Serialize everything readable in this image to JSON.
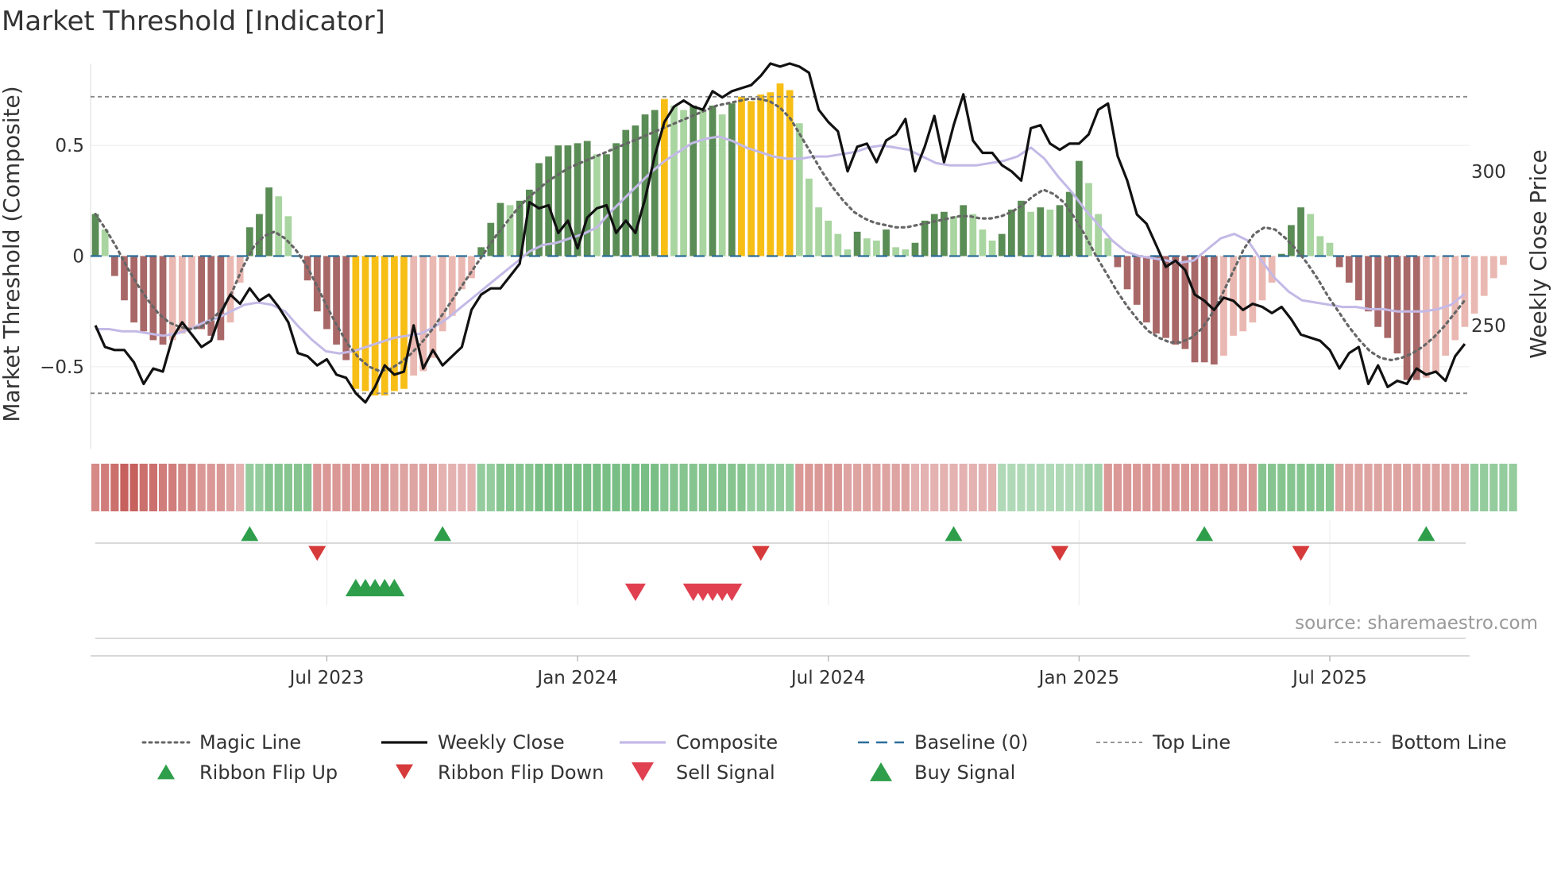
{
  "chart_data": {
    "type": "combo",
    "title": "Market Threshold [Indicator]",
    "ylabel_left": "Market Threshold (Composite)",
    "ylabel_right": "Weekly Close Price",
    "ylim_left": [
      -0.87,
      0.87
    ],
    "ylim_right": [
      210,
      335
    ],
    "yticks_left": [
      {
        "v": 0.5,
        "label": "0.5"
      },
      {
        "v": 0,
        "label": "0"
      },
      {
        "v": -0.5,
        "label": "−0.5"
      }
    ],
    "yticks_right": [
      {
        "v": 300,
        "label": "300"
      },
      {
        "v": 250,
        "label": "250"
      }
    ],
    "x_ticks": [
      {
        "week": 24,
        "label": "Jul 2023"
      },
      {
        "week": 50,
        "label": "Jan 2024"
      },
      {
        "week": 76,
        "label": "Jul 2024"
      },
      {
        "week": 102,
        "label": "Jan 2025"
      },
      {
        "week": 128,
        "label": "Jul 2025"
      }
    ],
    "n_weeks": 143,
    "top_line": 0.72,
    "bottom_line": -0.62,
    "baseline": 0,
    "composite_bars": [
      0.19,
      0.12,
      -0.09,
      -0.2,
      -0.3,
      -0.34,
      -0.38,
      -0.4,
      -0.38,
      -0.35,
      -0.33,
      -0.33,
      -0.36,
      -0.38,
      -0.3,
      -0.12,
      0.13,
      0.19,
      0.31,
      0.27,
      0.18,
      0,
      -0.11,
      -0.25,
      -0.33,
      -0.4,
      -0.47,
      -0.6,
      -0.61,
      -0.63,
      -0.63,
      -0.61,
      -0.6,
      -0.54,
      -0.52,
      -0.46,
      -0.34,
      -0.27,
      -0.15,
      -0.1,
      0.04,
      0.15,
      0.24,
      0.23,
      0.25,
      0.3,
      0.42,
      0.45,
      0.5,
      0.5,
      0.51,
      0.52,
      0.46,
      0.46,
      0.51,
      0.57,
      0.59,
      0.64,
      0.66,
      0.71,
      0.68,
      0.66,
      0.68,
      0.66,
      0.68,
      0.64,
      0.69,
      0.72,
      0.7,
      0.73,
      0.74,
      0.78,
      0.75,
      0.6,
      0.35,
      0.22,
      0.16,
      0.1,
      0.03,
      0.11,
      0.08,
      0.07,
      0.12,
      0.04,
      0.03,
      0.06,
      0.16,
      0.19,
      0.2,
      0.18,
      0.23,
      0.19,
      0.12,
      0.07,
      0.1,
      0.21,
      0.25,
      0.2,
      0.22,
      0.21,
      0.23,
      0.29,
      0.43,
      0.33,
      0.19,
      0.08,
      -0.05,
      -0.15,
      -0.22,
      -0.3,
      -0.35,
      -0.37,
      -0.4,
      -0.42,
      -0.48,
      -0.48,
      -0.49,
      -0.45,
      -0.36,
      -0.34,
      -0.3,
      -0.2,
      -0.12,
      0.01,
      0.14,
      0.22,
      0.19,
      0.09,
      0.06,
      -0.05,
      -0.12,
      -0.2,
      -0.25,
      -0.32,
      -0.37,
      -0.44,
      -0.56,
      -0.56,
      -0.55,
      -0.53,
      -0.45,
      -0.38,
      -0.32,
      -0.26,
      -0.18,
      -0.1,
      -0.04
    ],
    "weekly_close": [
      250,
      243,
      242,
      242,
      238,
      231,
      236,
      235,
      246,
      251,
      247,
      243,
      245,
      254,
      260,
      257,
      262,
      258,
      260,
      256,
      251,
      241,
      240,
      237,
      239,
      234,
      233,
      228,
      225,
      230,
      237,
      234,
      235,
      250,
      236,
      242,
      237,
      240,
      243,
      255,
      260,
      262,
      262,
      266,
      270,
      290,
      288,
      289,
      280,
      284,
      275,
      285,
      288,
      289,
      280,
      284,
      280,
      291,
      305,
      316,
      321,
      323,
      321,
      320,
      326,
      324,
      326,
      327,
      328,
      331,
      335,
      334,
      335,
      334,
      332,
      320,
      316,
      313,
      300,
      308,
      309,
      303,
      310,
      312,
      317,
      300,
      308,
      318,
      303,
      315,
      325,
      310,
      306,
      306,
      302,
      300,
      297,
      314,
      315,
      309,
      307,
      309,
      309,
      312,
      320,
      322,
      305,
      297,
      286,
      283,
      276,
      269,
      271,
      268,
      260,
      258,
      255,
      259,
      258,
      255,
      257,
      256,
      254,
      256,
      252,
      247,
      246,
      245,
      242,
      236,
      241,
      243,
      231,
      237,
      230,
      232,
      231,
      236,
      234,
      235,
      232,
      240,
      244
    ],
    "magic_line": [
      0.19,
      0.12,
      0.04,
      -0.05,
      -0.13,
      -0.2,
      -0.26,
      -0.3,
      -0.32,
      -0.33,
      -0.32,
      -0.29,
      -0.24,
      -0.16,
      -0.05,
      0.04,
      0.09,
      0.11,
      0.08,
      0.03,
      -0.04,
      -0.13,
      -0.23,
      -0.32,
      -0.4,
      -0.46,
      -0.5,
      -0.52,
      -0.51,
      -0.48,
      -0.44,
      -0.39,
      -0.33,
      -0.26,
      -0.19,
      -0.12,
      -0.05,
      0.02,
      0.09,
      0.15,
      0.21,
      0.26,
      0.3,
      0.34,
      0.37,
      0.4,
      0.42,
      0.44,
      0.46,
      0.48,
      0.5,
      0.52,
      0.54,
      0.56,
      0.58,
      0.6,
      0.62,
      0.64,
      0.66,
      0.68,
      0.69,
      0.7,
      0.71,
      0.71,
      0.7,
      0.67,
      0.62,
      0.54,
      0.46,
      0.38,
      0.31,
      0.25,
      0.2,
      0.17,
      0.15,
      0.14,
      0.13,
      0.13,
      0.14,
      0.15,
      0.16,
      0.17,
      0.18,
      0.18,
      0.17,
      0.17,
      0.18,
      0.2,
      0.23,
      0.27,
      0.3,
      0.28,
      0.24,
      0.17,
      0.09,
      0.0,
      -0.08,
      -0.16,
      -0.23,
      -0.29,
      -0.34,
      -0.37,
      -0.39,
      -0.39,
      -0.37,
      -0.33,
      -0.26,
      -0.17,
      -0.07,
      0.03,
      0.1,
      0.13,
      0.12,
      0.08,
      0.03,
      -0.03,
      -0.1,
      -0.18,
      -0.25,
      -0.32,
      -0.38,
      -0.43,
      -0.46,
      -0.47,
      -0.46,
      -0.44,
      -0.41,
      -0.37,
      -0.32,
      -0.26,
      -0.2
    ],
    "composite_smooth": [
      -0.33,
      -0.33,
      -0.34,
      -0.34,
      -0.35,
      -0.36,
      -0.35,
      -0.33,
      -0.3,
      -0.28,
      -0.25,
      -0.22,
      -0.21,
      -0.22,
      -0.25,
      -0.32,
      -0.38,
      -0.43,
      -0.44,
      -0.43,
      -0.41,
      -0.39,
      -0.37,
      -0.36,
      -0.35,
      -0.32,
      -0.28,
      -0.23,
      -0.18,
      -0.13,
      -0.08,
      -0.03,
      0.02,
      0.05,
      0.06,
      0.08,
      0.1,
      0.13,
      0.2,
      0.26,
      0.32,
      0.38,
      0.43,
      0.47,
      0.51,
      0.53,
      0.54,
      0.52,
      0.49,
      0.47,
      0.45,
      0.44,
      0.44,
      0.45,
      0.45,
      0.46,
      0.47,
      0.49,
      0.5,
      0.49,
      0.48,
      0.45,
      0.42,
      0.41,
      0.41,
      0.41,
      0.42,
      0.43,
      0.45,
      0.49,
      0.44,
      0.36,
      0.29,
      0.21,
      0.14,
      0.07,
      0.02,
      0.0,
      -0.01,
      -0.02,
      -0.03,
      -0.02,
      0.03,
      0.08,
      0.1,
      0.07,
      -0.02,
      -0.1,
      -0.16,
      -0.2,
      -0.21,
      -0.22,
      -0.23,
      -0.23,
      -0.24,
      -0.24,
      -0.25,
      -0.25,
      -0.25,
      -0.24,
      -0.22,
      -0.17
    ],
    "ribbon": [
      -0.6,
      -0.7,
      -0.8,
      -0.9,
      -0.9,
      -0.8,
      -0.8,
      -0.7,
      -0.7,
      -0.6,
      -0.6,
      -0.5,
      -0.5,
      -0.5,
      -0.4,
      -0.3,
      0.5,
      0.5,
      0.6,
      0.6,
      0.6,
      0.6,
      0.6,
      -0.5,
      -0.5,
      -0.5,
      -0.5,
      -0.5,
      -0.5,
      -0.5,
      -0.5,
      -0.4,
      -0.4,
      -0.4,
      -0.4,
      -0.4,
      -0.3,
      -0.3,
      -0.3,
      -0.3,
      0.5,
      0.5,
      0.6,
      0.6,
      0.6,
      0.6,
      0.7,
      0.7,
      0.7,
      0.7,
      0.7,
      0.7,
      0.7,
      0.7,
      0.7,
      0.7,
      0.7,
      0.7,
      0.7,
      0.6,
      0.6,
      0.6,
      0.6,
      0.6,
      0.6,
      0.6,
      0.6,
      0.6,
      0.5,
      0.5,
      0.5,
      0.5,
      0.5,
      -0.5,
      -0.5,
      -0.5,
      -0.5,
      -0.5,
      -0.4,
      -0.4,
      -0.4,
      -0.4,
      -0.4,
      -0.4,
      -0.4,
      -0.3,
      -0.3,
      -0.3,
      -0.3,
      -0.3,
      -0.3,
      -0.3,
      -0.3,
      -0.3,
      0.3,
      0.3,
      0.3,
      0.3,
      0.3,
      0.3,
      0.3,
      0.3,
      0.3,
      0.4,
      0.4,
      -0.5,
      -0.5,
      -0.5,
      -0.5,
      -0.5,
      -0.5,
      -0.5,
      -0.5,
      -0.5,
      -0.5,
      -0.5,
      -0.5,
      -0.5,
      -0.5,
      -0.5,
      -0.5,
      0.6,
      0.6,
      0.6,
      0.6,
      0.6,
      0.6,
      0.6,
      0.6,
      -0.4,
      -0.4,
      -0.4,
      -0.4,
      -0.4,
      -0.4,
      -0.4,
      -0.4,
      -0.4,
      -0.4,
      -0.4,
      -0.4,
      -0.4,
      -0.4,
      0.5,
      0.5,
      0.5,
      0.5,
      0.5
    ],
    "ribbon_flip_up_weeks": [
      16,
      36,
      89,
      115,
      138
    ],
    "ribbon_flip_down_weeks": [
      23,
      69,
      100,
      125
    ],
    "buy_signal_weeks": [
      27,
      28,
      29,
      30,
      31
    ],
    "sell_signal_weeks": [
      56,
      62,
      63,
      64,
      65,
      66
    ],
    "legend": [
      {
        "label": "Magic Line",
        "style": "dotted-line",
        "color": "#666666"
      },
      {
        "label": "Weekly Close",
        "style": "solid-line",
        "color": "#111111"
      },
      {
        "label": "Composite",
        "style": "solid-line",
        "color": "#c3b9e6"
      },
      {
        "label": "Baseline (0)",
        "style": "dashed-line",
        "color": "#2b6e9b"
      },
      {
        "label": "Top Line",
        "style": "dashed-line-thin",
        "color": "#888888"
      },
      {
        "label": "Bottom Line",
        "style": "dashed-line-thin",
        "color": "#888888"
      },
      {
        "label": "Ribbon Flip Up",
        "style": "triangle-up-small",
        "color": "#2e9e4a"
      },
      {
        "label": "Ribbon Flip Down",
        "style": "triangle-down-small",
        "color": "#d63a3a"
      },
      {
        "label": "Sell Signal",
        "style": "triangle-down",
        "color": "#e04050"
      },
      {
        "label": "Buy Signal",
        "style": "triangle-up",
        "color": "#2e9e4a"
      }
    ],
    "source": "source: sharemaestro.com"
  },
  "colors": {
    "bar_pos_dark": "#5a8c55",
    "bar_pos_light": "#a9d5a0",
    "bar_neg_dark": "#a96868",
    "bar_neg_light": "#eab8b2",
    "bar_extreme": "#f7be16",
    "weekly_close": "#111111",
    "composite_line": "#c3b9e6",
    "magic_line": "#666666",
    "baseline": "#2b6e9b",
    "threshold_lines": "#888888",
    "ribbon_pos": "#4aa85a",
    "ribbon_neg": "#c0504d",
    "flip_up": "#2e9e4a",
    "flip_down": "#d63a3a",
    "sell": "#e04050",
    "buy": "#2e9e4a"
  }
}
